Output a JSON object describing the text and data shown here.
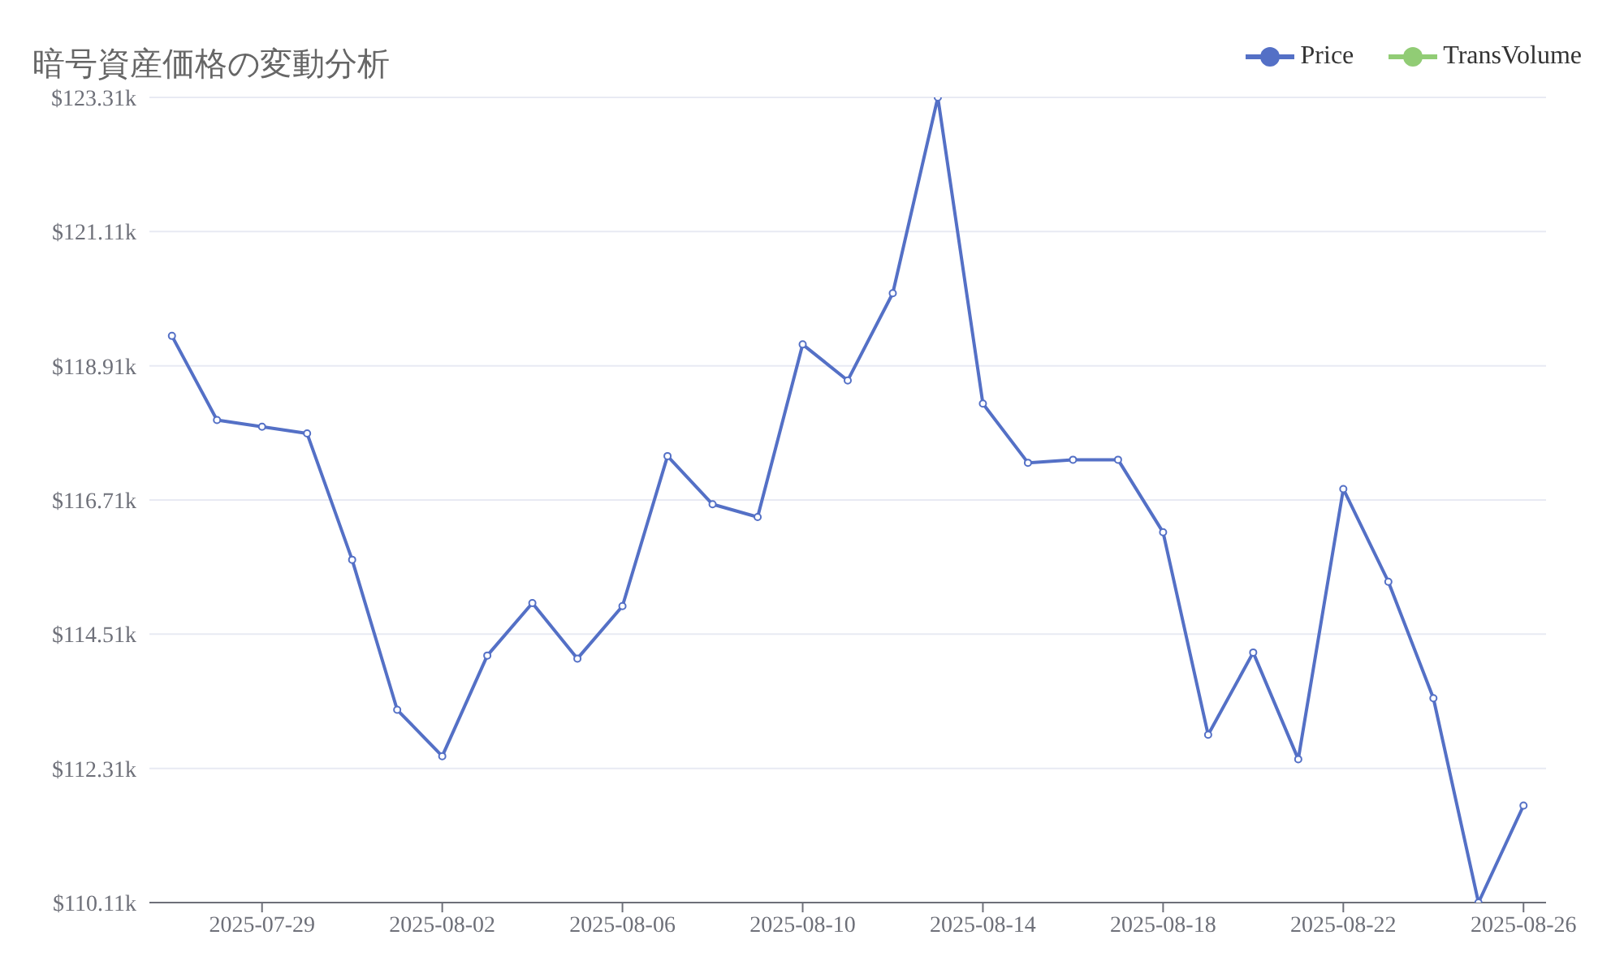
{
  "chart_data": {
    "type": "line",
    "title": "暗号資産価格の変動分析",
    "x": [
      "2025-07-27",
      "2025-07-28",
      "2025-07-29",
      "2025-07-30",
      "2025-07-31",
      "2025-08-01",
      "2025-08-02",
      "2025-08-03",
      "2025-08-04",
      "2025-08-05",
      "2025-08-06",
      "2025-08-07",
      "2025-08-08",
      "2025-08-09",
      "2025-08-10",
      "2025-08-11",
      "2025-08-12",
      "2025-08-13",
      "2025-08-14",
      "2025-08-15",
      "2025-08-16",
      "2025-08-17",
      "2025-08-18",
      "2025-08-19",
      "2025-08-20",
      "2025-08-21",
      "2025-08-22",
      "2025-08-23",
      "2025-08-24",
      "2025-08-25",
      "2025-08-26"
    ],
    "series": [
      {
        "name": "Price",
        "color": "#5470c6",
        "values": [
          119.4,
          118.02,
          117.91,
          117.8,
          115.73,
          113.27,
          112.51,
          114.16,
          115.02,
          114.11,
          114.97,
          117.43,
          116.64,
          116.43,
          119.26,
          118.67,
          120.1,
          123.31,
          118.29,
          117.32,
          117.37,
          117.37,
          116.18,
          112.86,
          114.21,
          112.46,
          116.89,
          115.37,
          113.46,
          110.11,
          111.7
        ]
      },
      {
        "name": "TransVolume",
        "color": "#91cc75",
        "values": [
          null,
          null,
          null,
          null,
          null,
          null,
          null,
          null,
          null,
          null,
          null,
          null,
          null,
          null,
          null,
          null,
          null,
          null,
          null,
          null,
          null,
          null,
          null,
          null,
          null,
          null,
          null,
          null,
          null,
          null,
          null
        ]
      }
    ],
    "xlim": [
      "2025-07-26T12:00",
      "2025-08-26T12:00"
    ],
    "xticks": [
      "2025-07-29",
      "2025-08-02",
      "2025-08-06",
      "2025-08-10",
      "2025-08-14",
      "2025-08-18",
      "2025-08-22",
      "2025-08-26"
    ],
    "ylim": [
      110.11,
      123.31
    ],
    "yticks": [
      {
        "value": 110.11,
        "label": "$110.11k"
      },
      {
        "value": 112.31,
        "label": "$112.31k"
      },
      {
        "value": 114.51,
        "label": "$114.51k"
      },
      {
        "value": 116.71,
        "label": "$116.71k"
      },
      {
        "value": 118.91,
        "label": "$118.91k"
      },
      {
        "value": 121.11,
        "label": "$121.11k"
      },
      {
        "value": 123.31,
        "label": "$123.31k"
      }
    ],
    "grid": "y",
    "legend": "top right",
    "marker": "circle",
    "line_style": "solid"
  }
}
